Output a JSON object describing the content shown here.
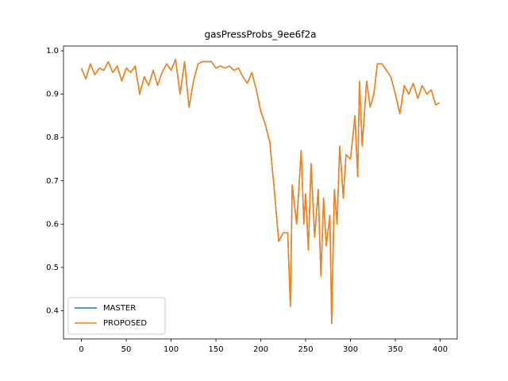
{
  "chart_data": {
    "type": "line",
    "title": "gasPressProbs_9ee6f2a",
    "x": [
      0,
      5,
      10,
      15,
      20,
      25,
      30,
      35,
      40,
      45,
      50,
      55,
      60,
      65,
      70,
      75,
      80,
      85,
      90,
      95,
      100,
      105,
      110,
      115,
      120,
      125,
      130,
      135,
      140,
      145,
      150,
      155,
      160,
      165,
      170,
      175,
      180,
      185,
      190,
      195,
      200,
      205,
      210,
      215,
      220,
      225,
      230,
      233,
      235,
      240,
      245,
      248,
      250,
      253,
      256,
      260,
      264,
      267,
      270,
      273,
      277,
      279,
      282,
      285,
      288,
      292,
      295,
      300,
      305,
      308,
      310,
      313,
      318,
      322,
      326,
      330,
      335,
      340,
      345,
      350,
      355,
      360,
      365,
      370,
      375,
      380,
      385,
      390,
      395,
      399
    ],
    "series": [
      {
        "name": "MASTER",
        "color": "#1f77b4",
        "values": [
          0.96,
          0.935,
          0.97,
          0.945,
          0.96,
          0.955,
          0.975,
          0.95,
          0.965,
          0.93,
          0.96,
          0.95,
          0.965,
          0.9,
          0.94,
          0.92,
          0.955,
          0.92,
          0.95,
          0.97,
          0.955,
          0.98,
          0.9,
          0.975,
          0.87,
          0.93,
          0.97,
          0.975,
          0.975,
          0.975,
          0.96,
          0.965,
          0.96,
          0.965,
          0.955,
          0.96,
          0.94,
          0.925,
          0.95,
          0.91,
          0.86,
          0.83,
          0.79,
          0.68,
          0.56,
          0.58,
          0.58,
          0.41,
          0.69,
          0.6,
          0.77,
          0.6,
          0.67,
          0.54,
          0.74,
          0.57,
          0.68,
          0.48,
          0.66,
          0.55,
          0.62,
          0.37,
          0.68,
          0.6,
          0.78,
          0.66,
          0.76,
          0.75,
          0.85,
          0.71,
          0.93,
          0.78,
          0.93,
          0.87,
          0.9,
          0.97,
          0.97,
          0.955,
          0.94,
          0.9,
          0.855,
          0.92,
          0.9,
          0.925,
          0.89,
          0.92,
          0.9,
          0.91,
          0.875,
          0.88
        ]
      },
      {
        "name": "PROPOSED",
        "color": "#ff7f0e",
        "values": [
          0.96,
          0.935,
          0.97,
          0.945,
          0.96,
          0.955,
          0.975,
          0.95,
          0.965,
          0.93,
          0.96,
          0.95,
          0.965,
          0.9,
          0.94,
          0.92,
          0.955,
          0.92,
          0.95,
          0.97,
          0.955,
          0.98,
          0.9,
          0.975,
          0.87,
          0.93,
          0.97,
          0.975,
          0.975,
          0.975,
          0.96,
          0.965,
          0.96,
          0.965,
          0.955,
          0.96,
          0.94,
          0.925,
          0.95,
          0.91,
          0.86,
          0.83,
          0.79,
          0.68,
          0.56,
          0.58,
          0.58,
          0.41,
          0.69,
          0.6,
          0.77,
          0.6,
          0.67,
          0.54,
          0.74,
          0.57,
          0.68,
          0.48,
          0.66,
          0.55,
          0.62,
          0.37,
          0.68,
          0.6,
          0.78,
          0.66,
          0.76,
          0.75,
          0.85,
          0.71,
          0.93,
          0.78,
          0.93,
          0.87,
          0.9,
          0.97,
          0.97,
          0.955,
          0.94,
          0.9,
          0.855,
          0.92,
          0.9,
          0.925,
          0.89,
          0.92,
          0.9,
          0.91,
          0.875,
          0.88
        ]
      }
    ],
    "xlim": [
      -19.95,
      418.95
    ],
    "xticks": [
      0,
      50,
      100,
      150,
      200,
      250,
      300,
      350,
      400
    ],
    "ylim": [
      0.335,
      1.011
    ],
    "yticks": [
      0.4,
      0.5,
      0.6,
      0.7,
      0.8,
      0.9,
      {
        "value": 1,
        "label": "1.0"
      }
    ],
    "legend": "lower left"
  }
}
